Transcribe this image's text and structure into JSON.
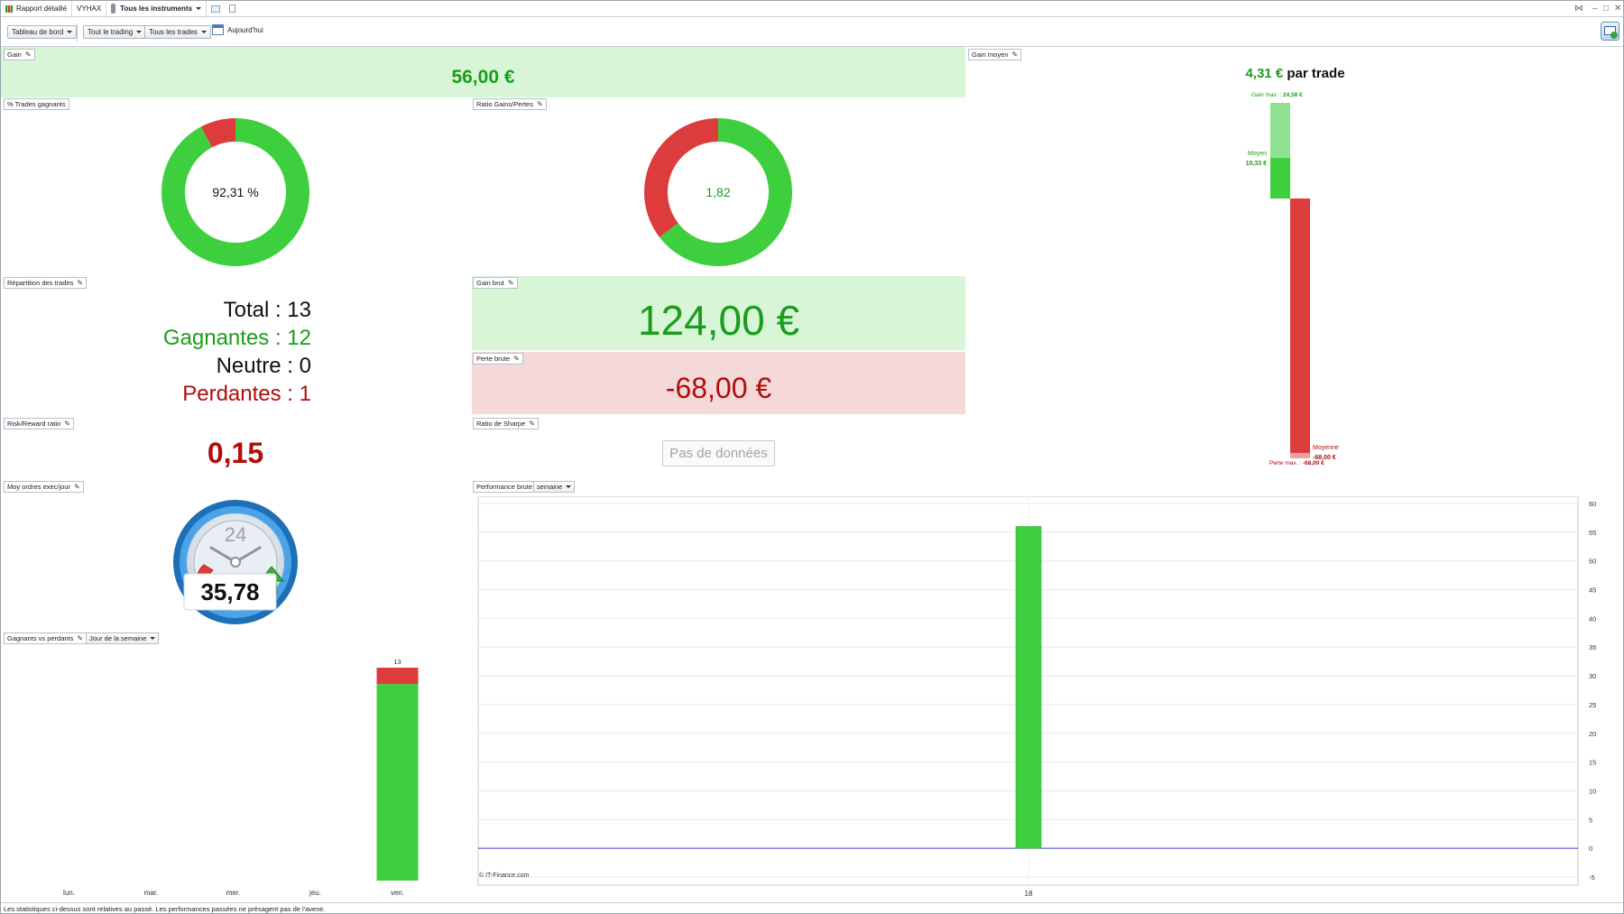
{
  "titlebar": {
    "report_label": "Rapport détaillé",
    "account": "VYHAX",
    "instruments_label": "Tous les instruments"
  },
  "toolbar": {
    "dashboard_label": "Tableau de bord",
    "trading_label": "Tout le trading",
    "trades_label": "Tous les trades",
    "today_label": "Aujourd'hui"
  },
  "panels": {
    "gain": {
      "title": "Gain",
      "value": "56,00 €"
    },
    "gain_moyen": {
      "title": "Gain moyen",
      "value": "4,31 €",
      "suffix": "par trade",
      "gain_max_label": "Gain max. :",
      "gain_max_value": "24,58 €",
      "moyen_label": "Moyen",
      "moyen_value": "10,33 €",
      "moyenne_label": "Moyenne",
      "moyenne_value": "-68,00 €",
      "perte_max_label": "Perte max. :",
      "perte_max_value": "-68,00 €"
    },
    "pct_gagnants": {
      "title": "% Trades gagnants",
      "value": "92,31 %",
      "fraction": 0.9231
    },
    "ratio_gp": {
      "title": "Ratio Gains/Pertes",
      "value": "1,82",
      "win_fraction": 0.6458
    },
    "repartition": {
      "title": "Répartition des trades",
      "total_label": "Total :",
      "total_value": "13",
      "gagnantes_label": "Gagnantes :",
      "gagnantes_value": "12",
      "neutre_label": "Neutre :",
      "neutre_value": "0",
      "perdantes_label": "Perdantes :",
      "perdantes_value": "1"
    },
    "gain_brut": {
      "title": "Gain brut",
      "value": "124,00 €"
    },
    "perte_brute": {
      "title": "Perte brute",
      "value": "-68,00 €"
    },
    "risk_reward": {
      "title": "Risk/Reward ratio",
      "value": "0,15"
    },
    "sharpe": {
      "title": "Ratio de Sharpe",
      "no_data": "Pas de données"
    },
    "moy_ordres": {
      "title": "Moy ordres exec/jour",
      "value": "35,78",
      "clock_label": "24"
    },
    "perf_brute": {
      "title": "Performance brute",
      "period": "semaine",
      "credit": "© IT-Finance.com"
    },
    "gagnants_vs_perdants": {
      "title": "Gagnants vs perdants",
      "grouping": "Jour de la semaine"
    }
  },
  "chart_data": [
    {
      "type": "bar",
      "id": "gagnants_vs_perdants",
      "categories": [
        "lun.",
        "mar.",
        "mer.",
        "jeu.",
        "ven."
      ],
      "series": [
        {
          "name": "",
          "color": "#3ecf3e",
          "values": [
            0,
            0,
            0,
            0,
            12
          ]
        },
        {
          "name": "",
          "color": "#dc3c3c",
          "values": [
            0,
            0,
            0,
            0,
            1
          ]
        }
      ],
      "totals_labels": [
        "",
        "",
        "",
        "",
        "13"
      ],
      "ylim": [
        0,
        13
      ]
    },
    {
      "type": "bar",
      "id": "performance_brute",
      "categories": [
        "18"
      ],
      "values": [
        56
      ],
      "color": "#3ecf3e",
      "ylim": [
        -5,
        60
      ],
      "yticks": [
        60,
        55,
        50,
        45,
        40,
        35,
        30,
        25,
        20,
        15,
        10,
        5,
        0,
        -5
      ],
      "grid": true
    }
  ],
  "footer": {
    "disclaimer": "Les statistiques ci-dessus sont relatives au passé. Les performances passées ne présagent pas de l'avenir."
  }
}
